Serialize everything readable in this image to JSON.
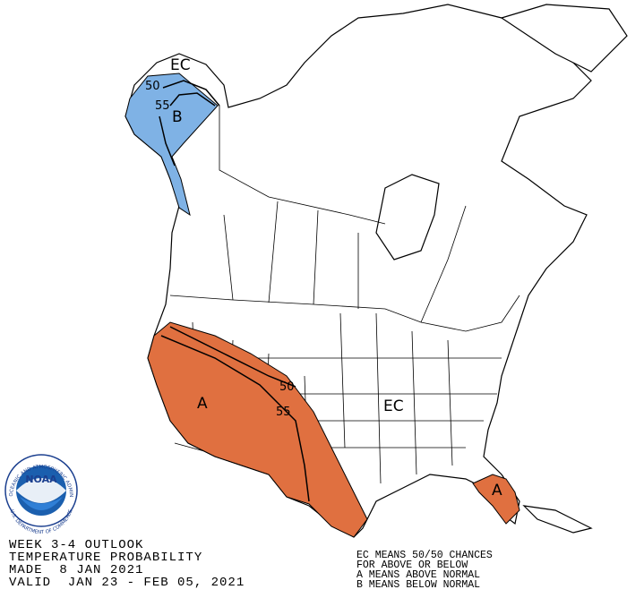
{
  "map": {
    "alaska_region": {
      "ec": "EC",
      "contour_outer": "50",
      "contour_inner": "55",
      "category": "B"
    },
    "west_region": {
      "category": "A",
      "contour_outer": "50",
      "contour_inner": "55"
    },
    "central": {
      "ec": "EC"
    },
    "florida_region": {
      "category": "A"
    }
  },
  "info": {
    "lines": [
      "WEEK 3-4 OUTLOOK",
      "TEMPERATURE PROBABILITY",
      "MADE  8 JAN 2021",
      "VALID  JAN 23 - FEB 05, 2021"
    ]
  },
  "legend": {
    "lines": [
      "EC MEANS 50/50 CHANCES",
      "FOR ABOVE OR BELOW",
      "A MEANS ABOVE NORMAL",
      "B MEANS BELOW NORMAL"
    ]
  },
  "logo": {
    "name": "NOAA",
    "ring_top": "NATIONAL OCEANIC AND ATMOSPHERIC ADMINISTRATION",
    "ring_bottom": "U.S. DEPARTMENT OF COMMERCE"
  }
}
